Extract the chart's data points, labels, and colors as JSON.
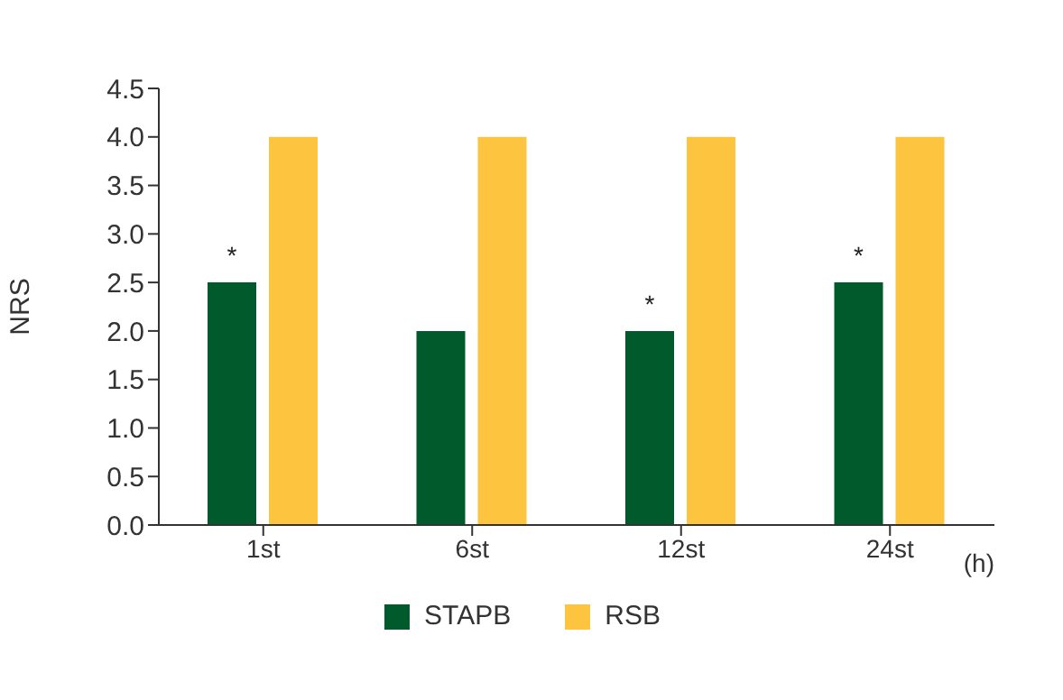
{
  "chart_data": {
    "type": "bar",
    "xlabel": "(h)",
    "ylabel": "NRS",
    "categories": [
      "1st",
      "6st",
      "12st",
      "24st"
    ],
    "series": [
      {
        "name": "STAPB",
        "color": "#005a2b",
        "values": [
          2.5,
          2.0,
          2.0,
          2.5
        ]
      },
      {
        "name": "RSB",
        "color": "#fdc43f",
        "values": [
          4.0,
          4.0,
          4.0,
          4.0
        ]
      }
    ],
    "ylim": [
      0,
      4.5
    ],
    "yticks": [
      {
        "value": 0,
        "label": "0.0"
      },
      {
        "value": 0.5,
        "label": "0.5"
      },
      {
        "value": 1,
        "label": "1.0"
      },
      {
        "value": 1.5,
        "label": "1.5"
      },
      {
        "value": 2,
        "label": "2.0"
      },
      {
        "value": 2.5,
        "label": "2.5"
      },
      {
        "value": 3,
        "label": "3.0"
      },
      {
        "value": 3.5,
        "label": "3.5"
      },
      {
        "value": 4,
        "label": "4.0"
      },
      {
        "value": 4.5,
        "label": "4.5"
      }
    ],
    "grid": false,
    "legend": "bottom",
    "annotations": [
      {
        "text": "*",
        "x": "1st",
        "y": 2.5
      },
      {
        "text": "*",
        "x": "12st",
        "y": 2.0
      },
      {
        "text": "*",
        "x": "24st",
        "y": 2.5
      }
    ]
  }
}
